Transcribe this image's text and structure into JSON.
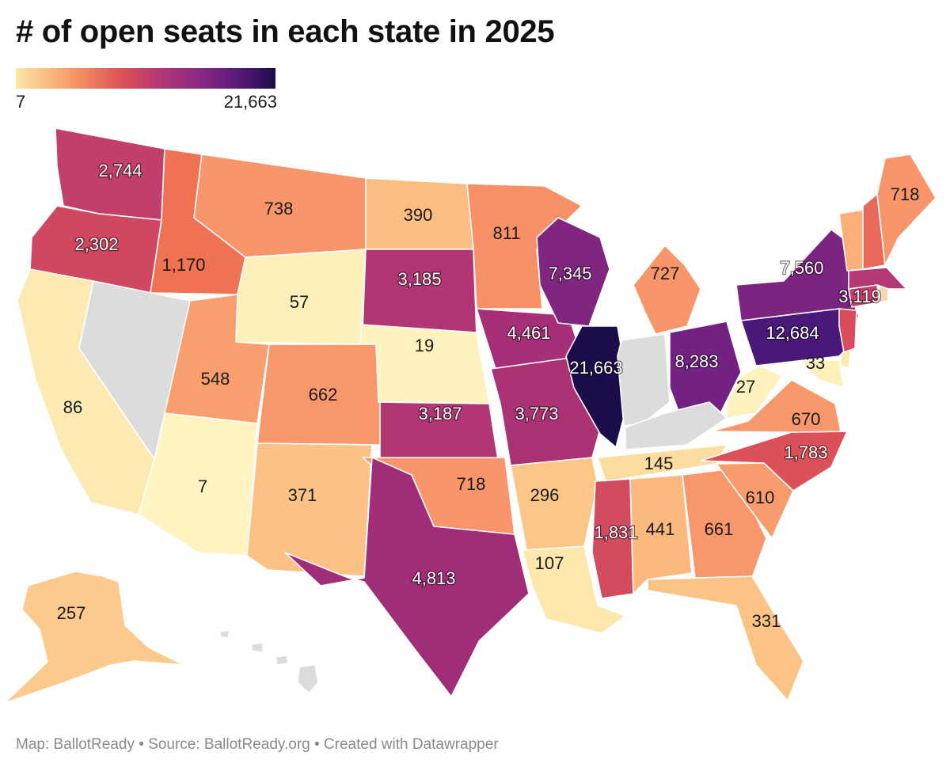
{
  "title": "# of open seats in each state in 2025",
  "legend": {
    "min_label": "7",
    "max_label": "21,663",
    "min_value": 7,
    "max_value": 21663
  },
  "footer": "Map: BallotReady • Source: BallotReady.org • Created with Datawrapper",
  "colors": {
    "no_data": "#dcdcdc",
    "dark_text": "#1a1a1a",
    "light_text": "#ffffff"
  },
  "states": [
    {
      "id": "WA",
      "label": "2,744",
      "value": 2744,
      "color": "#c23f6d"
    },
    {
      "id": "OR",
      "label": "2,302",
      "value": 2302,
      "color": "#cf4761"
    },
    {
      "id": "CA",
      "label": "86",
      "value": 86,
      "color": "#fdeab3"
    },
    {
      "id": "NV",
      "label": "",
      "value": null,
      "color": "#dcdcdc"
    },
    {
      "id": "ID",
      "label": "1,170",
      "value": 1170,
      "color": "#ef7252"
    },
    {
      "id": "MT",
      "label": "738",
      "value": 738,
      "color": "#f8956a"
    },
    {
      "id": "WY",
      "label": "57",
      "value": 57,
      "color": "#fef0bb"
    },
    {
      "id": "UT",
      "label": "548",
      "value": 548,
      "color": "#f99f6f"
    },
    {
      "id": "CO",
      "label": "662",
      "value": 662,
      "color": "#f8976b"
    },
    {
      "id": "AZ",
      "label": "7",
      "value": 7,
      "color": "#fff4c2"
    },
    {
      "id": "NM",
      "label": "371",
      "value": 371,
      "color": "#fcc184"
    },
    {
      "id": "ND",
      "label": "390",
      "value": 390,
      "color": "#fcbd82"
    },
    {
      "id": "SD",
      "label": "3,185",
      "value": 3185,
      "color": "#b33674"
    },
    {
      "id": "NE",
      "label": "19",
      "value": 19,
      "color": "#fef2be"
    },
    {
      "id": "KS",
      "label": "3,187",
      "value": 3187,
      "color": "#b33674"
    },
    {
      "id": "OK",
      "label": "718",
      "value": 718,
      "color": "#f8956a"
    },
    {
      "id": "TX",
      "label": "4,813",
      "value": 4813,
      "color": "#a12c78"
    },
    {
      "id": "MN",
      "label": "811",
      "value": 811,
      "color": "#f78f67"
    },
    {
      "id": "IA",
      "label": "4,461",
      "value": 4461,
      "color": "#a72f77"
    },
    {
      "id": "MO",
      "label": "3,773",
      "value": 3773,
      "color": "#ac3276"
    },
    {
      "id": "AR",
      "label": "296",
      "value": 296,
      "color": "#fcc689"
    },
    {
      "id": "LA",
      "label": "107",
      "value": 107,
      "color": "#fde7ad"
    },
    {
      "id": "WI",
      "label": "7,345",
      "value": 7345,
      "color": "#80267f"
    },
    {
      "id": "IL",
      "label": "21,663",
      "value": 21663,
      "color": "#1d0c4a"
    },
    {
      "id": "MI",
      "label": "727",
      "value": 727,
      "color": "#f8956a"
    },
    {
      "id": "IN",
      "label": "",
      "value": null,
      "color": "#dcdcdc"
    },
    {
      "id": "OH",
      "label": "8,283",
      "value": 8283,
      "color": "#732283"
    },
    {
      "id": "KY",
      "label": "",
      "value": null,
      "color": "#dcdcdc"
    },
    {
      "id": "TN",
      "label": "145",
      "value": 145,
      "color": "#fddc9e"
    },
    {
      "id": "MS",
      "label": "1,831",
      "value": 1831,
      "color": "#d24b5f"
    },
    {
      "id": "AL",
      "label": "441",
      "value": 441,
      "color": "#fbb97e"
    },
    {
      "id": "GA",
      "label": "661",
      "value": 661,
      "color": "#f8976b"
    },
    {
      "id": "FL",
      "label": "331",
      "value": 331,
      "color": "#fcc387"
    },
    {
      "id": "SC",
      "label": "610",
      "value": 610,
      "color": "#f89b6d"
    },
    {
      "id": "NC",
      "label": "1,783",
      "value": 1783,
      "color": "#db5059"
    },
    {
      "id": "VA",
      "label": "670",
      "value": 670,
      "color": "#f8976b"
    },
    {
      "id": "WV",
      "label": "27",
      "value": 27,
      "color": "#fef1bd"
    },
    {
      "id": "MD",
      "label": "33",
      "value": 33,
      "color": "#fef0bb"
    },
    {
      "id": "DE",
      "label": "",
      "value": null,
      "color": "#fde9b0"
    },
    {
      "id": "PA",
      "label": "12,684",
      "value": 12684,
      "color": "#4a1878"
    },
    {
      "id": "NY",
      "label": "7,560",
      "value": 7560,
      "color": "#7c2580"
    },
    {
      "id": "NJ",
      "label": "",
      "value": null,
      "color": "#d84c5c"
    },
    {
      "id": "CT",
      "label": "",
      "value": null,
      "color": "#c23f6d"
    },
    {
      "id": "RI",
      "label": "",
      "value": null,
      "color": "#f4d6b0"
    },
    {
      "id": "MA",
      "label": "3,119",
      "value": 3119,
      "color": "#b53773"
    },
    {
      "id": "VT",
      "label": "",
      "value": null,
      "color": "#fbae77"
    },
    {
      "id": "NH",
      "label": "",
      "value": null,
      "color": "#e8685a"
    },
    {
      "id": "ME",
      "label": "718",
      "value": 718,
      "color": "#f8956a"
    },
    {
      "id": "AK",
      "label": "257",
      "value": 257,
      "color": "#fcca8d"
    },
    {
      "id": "HI",
      "label": "",
      "value": null,
      "color": "#dcdcdc"
    }
  ]
}
